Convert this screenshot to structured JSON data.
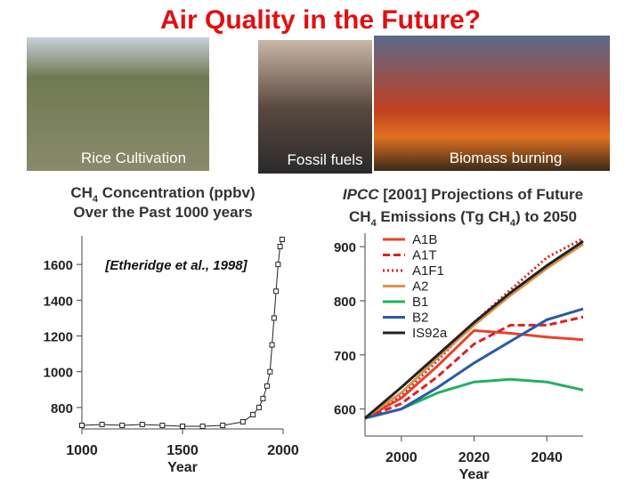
{
  "title": "Air Quality in the Future?",
  "photos": [
    "Rice Cultivation",
    "Fossil fuels",
    "Biomass burning"
  ],
  "chart_data": [
    {
      "type": "line",
      "title": [
        "CH",
        "4",
        " Concentration (ppbv)"
      ],
      "subtitle": "Over the Past 1000 years",
      "annotation": "[Etheridge et al., 1998]",
      "x_label": "Year",
      "x": [
        1000,
        1100,
        1200,
        1300,
        1400,
        1500,
        1600,
        1700,
        1800,
        1850,
        1880,
        1900,
        1920,
        1935,
        1945,
        1955,
        1965,
        1975,
        1985,
        1995
      ],
      "series": [
        {
          "color": "#222222",
          "values": [
            700,
            705,
            700,
            705,
            700,
            695,
            695,
            700,
            720,
            760,
            800,
            850,
            920,
            1000,
            1150,
            1300,
            1450,
            1600,
            1700,
            1740
          ]
        }
      ],
      "xlim": [
        1000,
        2000
      ],
      "xticks": [
        1000,
        1500,
        2000
      ],
      "ylim": [
        680,
        1760
      ],
      "yticks": [
        800,
        1000,
        1200,
        1400,
        1600
      ]
    },
    {
      "type": "line",
      "title": [
        "IPCC",
        " [2001] Projections of Future",
        "CH",
        "4",
        " Emissions (Tg CH",
        "4",
        ") to 2050"
      ],
      "x_label": "Year",
      "x": [
        1990,
        2000,
        2010,
        2020,
        2030,
        2040,
        2050
      ],
      "series": [
        {
          "name": "A1B",
          "color": "#e8432a",
          "dash": "solid",
          "values": [
            583,
            620,
            680,
            745,
            740,
            733,
            728
          ]
        },
        {
          "name": "A1T",
          "color": "#e02020",
          "dash": "dashed",
          "values": [
            583,
            610,
            660,
            720,
            755,
            755,
            770
          ]
        },
        {
          "name": "A1F1",
          "color": "#e02020",
          "dash": "dotted",
          "values": [
            583,
            625,
            690,
            760,
            820,
            880,
            915
          ]
        },
        {
          "name": "A2",
          "color": "#d8944a",
          "dash": "solid",
          "values": [
            583,
            630,
            695,
            755,
            810,
            860,
            905
          ]
        },
        {
          "name": "B1",
          "color": "#22b060",
          "dash": "solid",
          "values": [
            583,
            600,
            630,
            650,
            655,
            650,
            635
          ]
        },
        {
          "name": "B2",
          "color": "#2a5aa8",
          "dash": "solid",
          "values": [
            583,
            600,
            640,
            685,
            725,
            765,
            785
          ]
        },
        {
          "name": "IS92a",
          "color": "#222222",
          "dash": "solid",
          "values": [
            583,
            640,
            700,
            760,
            815,
            865,
            910
          ]
        }
      ],
      "xlim": [
        1990,
        2050
      ],
      "xticks": [
        2000,
        2020,
        2040
      ],
      "ylim": [
        550,
        925
      ],
      "yticks": [
        600,
        700,
        800,
        900
      ]
    }
  ]
}
